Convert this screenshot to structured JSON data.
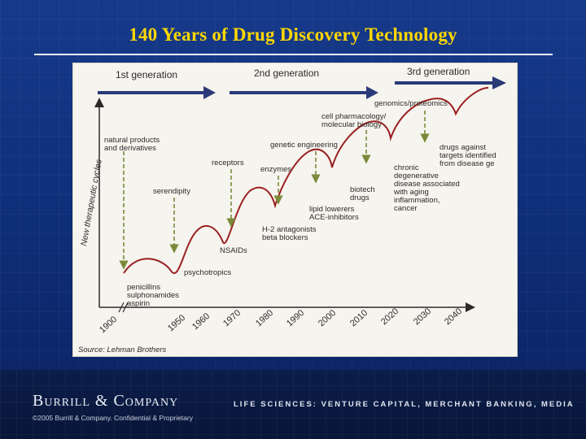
{
  "slide": {
    "title": "140 Years of Drug Discovery Technology"
  },
  "diagram": {
    "generations": [
      "1st generation",
      "2nd generation",
      "3rd generation"
    ],
    "y_axis_label": "New therapeutic cycles",
    "x_axis_ticks": [
      "1900",
      "1950",
      "1960",
      "1970",
      "1980",
      "1990",
      "2000",
      "2010",
      "2020",
      "2030",
      "2040"
    ],
    "technologies": [
      [
        "natural products",
        "and derivatives"
      ],
      [
        "serendipity"
      ],
      [
        "receptors"
      ],
      [
        "enzymes"
      ],
      [
        "genetic engineering"
      ],
      [
        "cell pharmacology/",
        "molecular biology"
      ],
      [
        "genomics/proteomics"
      ]
    ],
    "drug_classes": [
      [
        "penicillins",
        "sulphonamides",
        "aspirin"
      ],
      [
        "psychotropics"
      ],
      [
        "NSAIDs"
      ],
      [
        "H-2 antagonists",
        "beta blockers"
      ],
      [
        "lipid lowerers",
        "ACE-inhibitors"
      ],
      [
        "biotech",
        "drugs"
      ],
      [
        "chronic",
        "degenerative",
        "disease associated",
        "with aging",
        "inflammation,",
        "cancer"
      ],
      [
        "drugs against",
        "targets identified",
        "from disease ge"
      ]
    ],
    "source": "Source: Lehman Brothers",
    "colors": {
      "curve": "#9a2020",
      "arrow": "#2a3a78",
      "dashed_arrow": "#7a8a3a",
      "ink": "#2d2a2a"
    }
  },
  "footer": {
    "company": "Burrill & Company",
    "tagline": "LIFE SCIENCES: VENTURE CAPITAL, MERCHANT BANKING, MEDIA",
    "copyright": "©2005 Burrill & Company. Confidential & Proprietary"
  }
}
